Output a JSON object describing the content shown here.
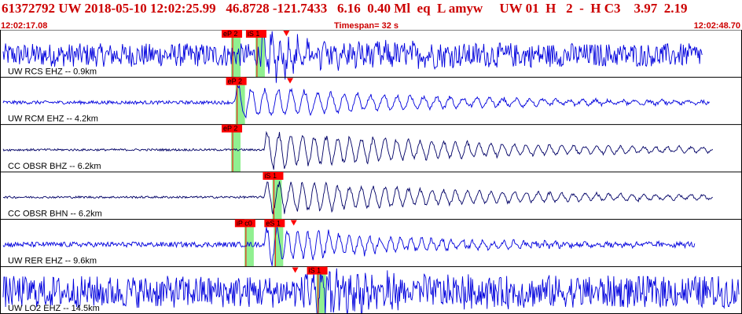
{
  "header": {
    "info_line": "61372792 UW 2018-05-10 12:02:25.99   46.8728 -121.7433   6.16  0.40 Ml  eq  L amyw     UW 01  H   2  -  H C3    3.97  2.19",
    "start_time": "12:02:17.08",
    "timespan": "Timespan=  32 s",
    "end_time": "12:02:48.70"
  },
  "colors": {
    "header_text": "#cc0000",
    "trace_blue": "#0000dd",
    "trace_navy": "#000066",
    "pick_flag": "#ff0000",
    "pick_window": "#90f090"
  },
  "traces": [
    {
      "label": "UW RCS EHZ -- 0.9km",
      "color": "#0000dd",
      "amp": 0.45,
      "noise": 0.55,
      "onset": 0.38,
      "coda_amp": 1.0,
      "coda_decay": 0.12,
      "period": 0.012,
      "end": 0.95,
      "picks": [
        {
          "label": "eP 2",
          "pos": 0.312
        },
        {
          "label": "iS 1",
          "pos": 0.345
        }
      ],
      "arrival_marker": 0.385
    },
    {
      "label": "UW RCM EHZ -- 4.2km",
      "color": "#0000dd",
      "amp": 0.45,
      "noise": 0.08,
      "onset": 0.345,
      "coda_amp": 0.9,
      "coda_decay": 0.25,
      "period": 0.018,
      "end": 0.96,
      "picks": [
        {
          "label": "eP 2",
          "pos": 0.318
        }
      ],
      "arrival_marker": 0.39
    },
    {
      "label": "CC OBSR BHZ -- 6.2km",
      "color": "#000066",
      "amp": 0.45,
      "noise": 0.05,
      "onset": 0.385,
      "coda_amp": 1.0,
      "coda_decay": 0.3,
      "period": 0.016,
      "end": 0.965,
      "picks": [
        {
          "label": "eP 2",
          "pos": 0.312
        }
      ],
      "arrival_marker": null
    },
    {
      "label": "CC OBSR BHN -- 6.2km",
      "color": "#000066",
      "amp": 0.45,
      "noise": 0.05,
      "onset": 0.385,
      "coda_amp": 0.9,
      "coda_decay": 0.3,
      "period": 0.016,
      "end": 0.965,
      "picks": [
        {
          "label": "iS 1",
          "pos": 0.368
        }
      ],
      "arrival_marker": null
    },
    {
      "label": "UW RER EHZ -- 9.6km",
      "color": "#0000dd",
      "amp": 0.45,
      "noise": 0.12,
      "onset": 0.385,
      "coda_amp": 1.0,
      "coda_decay": 0.18,
      "period": 0.014,
      "end": 0.94,
      "picks": [
        {
          "label": "iP c0",
          "pos": 0.33
        },
        {
          "label": "eS 1",
          "pos": 0.37
        }
      ],
      "arrival_marker": 0.395
    },
    {
      "label": "UW LO2 EHZ -- 14.5km",
      "color": "#0000dd",
      "amp": 0.45,
      "noise": 0.75,
      "onset": 0.44,
      "coda_amp": 1.0,
      "coda_decay": 0.12,
      "period": 0.01,
      "end": 1.0,
      "picks": [
        {
          "label": "iS 1",
          "pos": 0.428
        }
      ],
      "arrival_marker": 0.397
    }
  ]
}
